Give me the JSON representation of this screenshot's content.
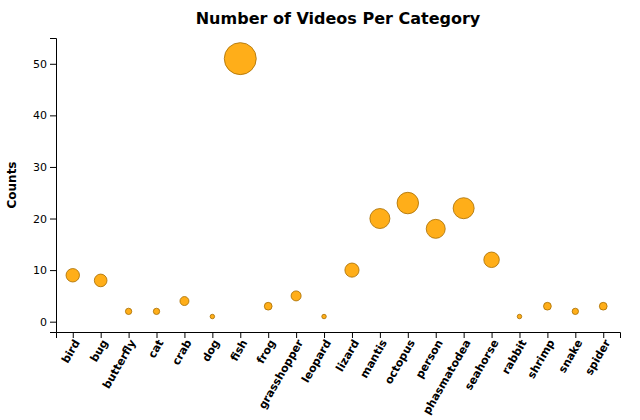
{
  "chart_data": {
    "type": "scatter",
    "title": "Number of Videos Per Category",
    "ylabel": "Counts",
    "categories": [
      "bird",
      "bug",
      "butterfly",
      "cat",
      "crab",
      "dog",
      "fish",
      "frog",
      "grasshopper",
      "leopard",
      "lizard",
      "mantis",
      "octopus",
      "person",
      "phasmatodea",
      "seahorse",
      "rabbit",
      "shrimp",
      "snake",
      "spider"
    ],
    "values": [
      9,
      8,
      2,
      2,
      4,
      1,
      51,
      3,
      5,
      1,
      10,
      20,
      23,
      18,
      22,
      12,
      1,
      3,
      2,
      3
    ],
    "sizes": [
      49.5,
      44,
      11,
      11,
      22,
      5.5,
      280.5,
      16.5,
      27.5,
      5.5,
      55,
      110,
      126.5,
      99,
      121,
      66,
      5.5,
      16.5,
      11,
      16.5
    ],
    "color": "#FFA500",
    "ylim": [
      -2,
      55
    ],
    "yticks": [
      0,
      10,
      20,
      30,
      40,
      50
    ],
    "grid": false
  }
}
